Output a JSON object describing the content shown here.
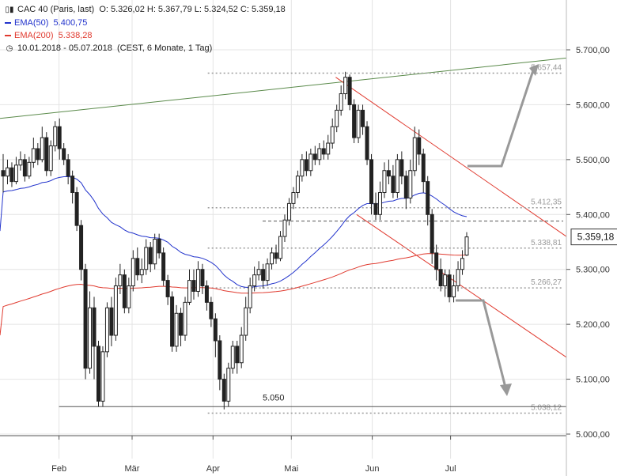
{
  "header": {
    "instrument": "CAC 40 (Paris, last)",
    "ohlc": "O: 5.326,02  H: 5.367,79  L: 5.324,52  C: 5.359,18",
    "ema50_label": "EMA(50)",
    "ema50_value": "5.400,75",
    "ema200_label": "EMA(200)",
    "ema200_value": "5.338,28",
    "period": "10.01.2018 - 05.07.2018",
    "period_info": "(CEST, 6 Monate, 1 Tag)"
  },
  "colors": {
    "ema50": "#2233cc",
    "ema200": "#e03a2f",
    "trend_red": "#e03a2f",
    "trend_green": "#5a8a4a",
    "arrow": "#999999",
    "candle": "#222222"
  },
  "icons": [
    "candlestick-chart-icon",
    "clock-icon"
  ],
  "chart_data": {
    "type": "candlestick",
    "title": "CAC 40 (Paris, last)",
    "y_range": [
      4960,
      5760
    ],
    "y_ticks": [
      "5.700,00",
      "5.600,00",
      "5.500,00",
      "5.400,00",
      "5.300,00",
      "5.200,00",
      "5.100,00",
      "5.000,00"
    ],
    "y_tick_values": [
      5700,
      5600,
      5500,
      5400,
      5300,
      5200,
      5100,
      5000
    ],
    "x_ticks": [
      "Feb",
      "Mär",
      "Apr",
      "Mai",
      "Jun",
      "Jul"
    ],
    "x_tick_days": [
      22,
      50,
      81,
      111,
      142,
      172
    ],
    "last_price": "5.359,18",
    "last_value": 5359.18,
    "levels": [
      {
        "label": "5.657,44",
        "value": 5657.44
      },
      {
        "label": "5.412,35",
        "value": 5412.35
      },
      {
        "label": "5.338,81",
        "value": 5338.81
      },
      {
        "label": "5.266,27",
        "value": 5266.27
      },
      {
        "label": "5.038,12",
        "value": 5038.12
      }
    ],
    "support_label": "5.050",
    "support_value": 5050,
    "dashed_level": 5388,
    "candles": [
      [
        5480,
        5470,
        5510,
        5440
      ],
      [
        5470,
        5485,
        5500,
        5455
      ],
      [
        5485,
        5460,
        5495,
        5450
      ],
      [
        5460,
        5490,
        5505,
        5455
      ],
      [
        5490,
        5500,
        5515,
        5480
      ],
      [
        5500,
        5470,
        5510,
        5460
      ],
      [
        5470,
        5495,
        5505,
        5465
      ],
      [
        5495,
        5520,
        5540,
        5485
      ],
      [
        5520,
        5500,
        5530,
        5490
      ],
      [
        5500,
        5540,
        5560,
        5495
      ],
      [
        5540,
        5480,
        5550,
        5470
      ],
      [
        5480,
        5525,
        5535,
        5470
      ],
      [
        5525,
        5560,
        5570,
        5515
      ],
      [
        5560,
        5520,
        5575,
        5500
      ],
      [
        5520,
        5500,
        5530,
        5490
      ],
      [
        5500,
        5470,
        5510,
        5455
      ],
      [
        5470,
        5440,
        5480,
        5420
      ],
      [
        5440,
        5380,
        5450,
        5370
      ],
      [
        5380,
        5300,
        5390,
        5280
      ],
      [
        5300,
        5120,
        5310,
        5100
      ],
      [
        5120,
        5230,
        5260,
        5110
      ],
      [
        5230,
        5160,
        5250,
        5100
      ],
      [
        5160,
        5060,
        5170,
        5050
      ],
      [
        5060,
        5150,
        5160,
        5050
      ],
      [
        5150,
        5230,
        5240,
        5140
      ],
      [
        5230,
        5180,
        5250,
        5160
      ],
      [
        5180,
        5270,
        5285,
        5170
      ],
      [
        5270,
        5290,
        5310,
        5255
      ],
      [
        5290,
        5230,
        5300,
        5220
      ],
      [
        5230,
        5270,
        5285,
        5220
      ],
      [
        5270,
        5320,
        5335,
        5260
      ],
      [
        5320,
        5290,
        5340,
        5280
      ],
      [
        5290,
        5300,
        5320,
        5275
      ],
      [
        5300,
        5340,
        5355,
        5290
      ],
      [
        5340,
        5310,
        5350,
        5295
      ],
      [
        5310,
        5355,
        5365,
        5300
      ],
      [
        5355,
        5330,
        5365,
        5320
      ],
      [
        5330,
        5280,
        5340,
        5270
      ],
      [
        5280,
        5250,
        5290,
        5235
      ],
      [
        5250,
        5160,
        5260,
        5150
      ],
      [
        5160,
        5220,
        5235,
        5150
      ],
      [
        5220,
        5180,
        5230,
        5160
      ],
      [
        5180,
        5240,
        5250,
        5170
      ],
      [
        5240,
        5280,
        5300,
        5235
      ],
      [
        5280,
        5260,
        5300,
        5245
      ],
      [
        5260,
        5300,
        5315,
        5250
      ],
      [
        5300,
        5270,
        5310,
        5255
      ],
      [
        5270,
        5240,
        5280,
        5225
      ],
      [
        5240,
        5210,
        5250,
        5195
      ],
      [
        5210,
        5170,
        5220,
        5140
      ],
      [
        5170,
        5100,
        5180,
        5080
      ],
      [
        5100,
        5060,
        5110,
        5045
      ],
      [
        5060,
        5120,
        5130,
        5050
      ],
      [
        5120,
        5160,
        5170,
        5110
      ],
      [
        5160,
        5130,
        5170,
        5110
      ],
      [
        5130,
        5180,
        5195,
        5120
      ],
      [
        5180,
        5230,
        5250,
        5170
      ],
      [
        5230,
        5270,
        5285,
        5220
      ],
      [
        5270,
        5290,
        5305,
        5260
      ],
      [
        5290,
        5300,
        5315,
        5280
      ],
      [
        5300,
        5280,
        5310,
        5265
      ],
      [
        5280,
        5310,
        5320,
        5270
      ],
      [
        5310,
        5330,
        5340,
        5300
      ],
      [
        5330,
        5320,
        5345,
        5310
      ],
      [
        5320,
        5360,
        5370,
        5315
      ],
      [
        5360,
        5390,
        5400,
        5350
      ],
      [
        5390,
        5420,
        5430,
        5380
      ],
      [
        5420,
        5440,
        5450,
        5410
      ],
      [
        5440,
        5470,
        5480,
        5430
      ],
      [
        5470,
        5500,
        5510,
        5460
      ],
      [
        5500,
        5480,
        5515,
        5470
      ],
      [
        5480,
        5510,
        5520,
        5470
      ],
      [
        5510,
        5500,
        5525,
        5490
      ],
      [
        5500,
        5520,
        5530,
        5490
      ],
      [
        5520,
        5510,
        5535,
        5500
      ],
      [
        5510,
        5530,
        5545,
        5500
      ],
      [
        5530,
        5560,
        5575,
        5520
      ],
      [
        5560,
        5590,
        5600,
        5550
      ],
      [
        5590,
        5620,
        5635,
        5580
      ],
      [
        5620,
        5650,
        5660,
        5610
      ],
      [
        5650,
        5600,
        5655,
        5590
      ],
      [
        5600,
        5540,
        5610,
        5530
      ],
      [
        5540,
        5590,
        5600,
        5530
      ],
      [
        5590,
        5560,
        5600,
        5545
      ],
      [
        5560,
        5500,
        5570,
        5490
      ],
      [
        5500,
        5420,
        5510,
        5400
      ],
      [
        5420,
        5400,
        5440,
        5390
      ],
      [
        5400,
        5440,
        5460,
        5390
      ],
      [
        5440,
        5480,
        5495,
        5430
      ],
      [
        5480,
        5470,
        5500,
        5455
      ],
      [
        5470,
        5440,
        5490,
        5430
      ],
      [
        5440,
        5500,
        5510,
        5430
      ],
      [
        5500,
        5470,
        5515,
        5455
      ],
      [
        5470,
        5430,
        5480,
        5410
      ],
      [
        5430,
        5480,
        5500,
        5420
      ],
      [
        5480,
        5540,
        5560,
        5470
      ],
      [
        5540,
        5510,
        5555,
        5490
      ],
      [
        5510,
        5460,
        5520,
        5440
      ],
      [
        5460,
        5400,
        5470,
        5380
      ],
      [
        5400,
        5330,
        5410,
        5310
      ],
      [
        5330,
        5300,
        5345,
        5280
      ],
      [
        5300,
        5270,
        5320,
        5260
      ],
      [
        5270,
        5290,
        5300,
        5250
      ],
      [
        5290,
        5250,
        5300,
        5240
      ],
      [
        5250,
        5270,
        5290,
        5240
      ],
      [
        5270,
        5300,
        5315,
        5260
      ],
      [
        5300,
        5320,
        5335,
        5290
      ],
      [
        5326.02,
        5359.18,
        5367.79,
        5324.52
      ]
    ]
  }
}
